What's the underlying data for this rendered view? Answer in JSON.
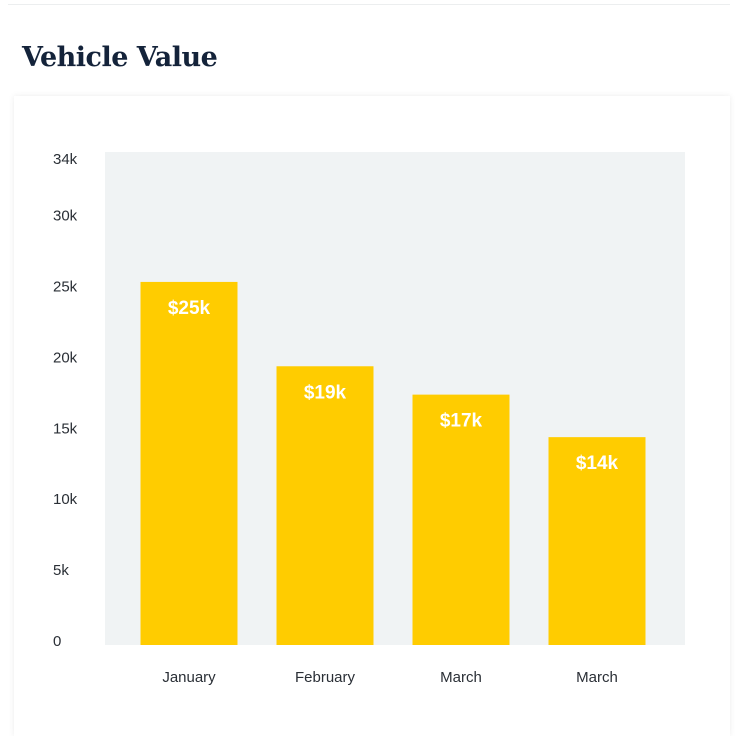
{
  "chart_data": {
    "type": "bar",
    "title": "Vehicle Value",
    "categories": [
      "January",
      "February",
      "March",
      "March"
    ],
    "values": [
      25400,
      19450,
      17450,
      14450
    ],
    "value_labels": [
      "$25k",
      "$19k",
      "$17k",
      "$14k"
    ],
    "color": "#ffcc00",
    "ylim": [
      0,
      34000
    ],
    "yticks": [
      0,
      {
        "value": 5000,
        "label": "5k"
      },
      {
        "value": 10000,
        "label": "10k"
      },
      {
        "value": 15000,
        "label": "15k"
      },
      {
        "value": 20000,
        "label": "20k"
      },
      {
        "value": 25000,
        "label": "25k"
      },
      {
        "value": 30000,
        "label": "30k"
      },
      {
        "value": 34000,
        "label": "34k"
      }
    ],
    "grid": false
  }
}
